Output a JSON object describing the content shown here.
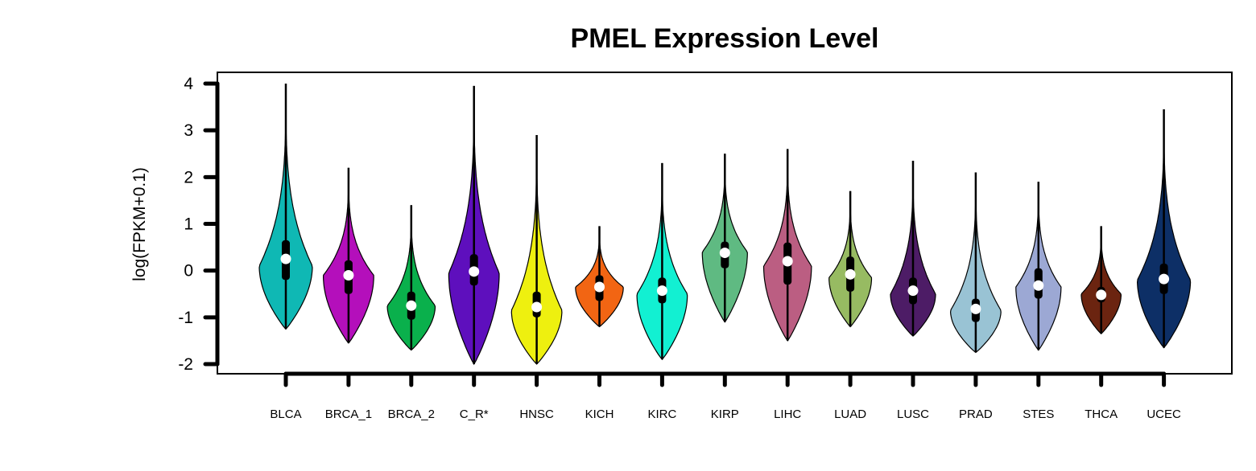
{
  "chart_data": {
    "type": "violin",
    "title": "PMEL Expression Level",
    "xlabel": "",
    "ylabel": "log(FPKM+0.1)",
    "ylim": [
      -2,
      4
    ],
    "yticks": [
      4,
      3,
      2,
      1,
      0,
      -1,
      -2
    ],
    "grid": false,
    "legend": "none",
    "categories": [
      "BLCA",
      "BRCA_1",
      "BRCA_2",
      "C_R*",
      "HNSC",
      "KICH",
      "KIRC",
      "KIRP",
      "LIHC",
      "LUAD",
      "LUSC",
      "PRAD",
      "STES",
      "THCA",
      "UCEC"
    ],
    "colors": [
      "#0FB8B4",
      "#B40FBB",
      "#0AB04C",
      "#5E0FBD",
      "#EEF00F",
      "#F26513",
      "#12F0D2",
      "#5FBA82",
      "#BB5E82",
      "#97BB62",
      "#4D1C66",
      "#99C3D4",
      "#9CA8D4",
      "#6B2410",
      "#0D2F66"
    ],
    "series": [
      {
        "min": -1.25,
        "q1": -0.2,
        "median": 0.25,
        "q3": 0.65,
        "max": 4.0,
        "mode": 0.1,
        "width": 1.0
      },
      {
        "min": -1.55,
        "q1": -0.5,
        "median": -0.1,
        "q3": 0.22,
        "max": 2.2,
        "mode": -0.1,
        "width": 0.95
      },
      {
        "min": -1.7,
        "q1": -1.05,
        "median": -0.75,
        "q3": -0.45,
        "max": 1.4,
        "mode": -0.75,
        "width": 0.9
      },
      {
        "min": -2.0,
        "q1": -0.32,
        "median": -0.02,
        "q3": 0.35,
        "max": 3.95,
        "mode": -0.05,
        "width": 0.95
      },
      {
        "min": -2.0,
        "q1": -1.0,
        "median": -0.78,
        "q3": -0.45,
        "max": 2.9,
        "mode": -0.85,
        "width": 0.95
      },
      {
        "min": -1.2,
        "q1": -0.65,
        "median": -0.35,
        "q3": -0.1,
        "max": 0.95,
        "mode": -0.35,
        "width": 0.9
      },
      {
        "min": -1.9,
        "q1": -0.7,
        "median": -0.43,
        "q3": -0.15,
        "max": 2.3,
        "mode": -0.5,
        "width": 0.95
      },
      {
        "min": -1.1,
        "q1": 0.05,
        "median": 0.38,
        "q3": 0.62,
        "max": 2.5,
        "mode": 0.4,
        "width": 0.85
      },
      {
        "min": -1.5,
        "q1": -0.3,
        "median": 0.2,
        "q3": 0.6,
        "max": 2.6,
        "mode": 0.1,
        "width": 0.9
      },
      {
        "min": -1.2,
        "q1": -0.45,
        "median": -0.08,
        "q3": 0.3,
        "max": 1.7,
        "mode": -0.15,
        "width": 0.8
      },
      {
        "min": -1.4,
        "q1": -0.72,
        "median": -0.43,
        "q3": -0.15,
        "max": 2.35,
        "mode": -0.5,
        "width": 0.85
      },
      {
        "min": -1.75,
        "q1": -1.1,
        "median": -0.82,
        "q3": -0.6,
        "max": 2.1,
        "mode": -0.85,
        "width": 0.95
      },
      {
        "min": -1.7,
        "q1": -0.6,
        "median": -0.32,
        "q3": 0.05,
        "max": 1.9,
        "mode": -0.35,
        "width": 0.85
      },
      {
        "min": -1.35,
        "q1": -0.68,
        "median": -0.52,
        "q3": -0.35,
        "max": 0.95,
        "mode": -0.5,
        "width": 0.75
      },
      {
        "min": -1.65,
        "q1": -0.5,
        "median": -0.18,
        "q3": 0.15,
        "max": 3.45,
        "mode": -0.2,
        "width": 1.0
      }
    ]
  }
}
